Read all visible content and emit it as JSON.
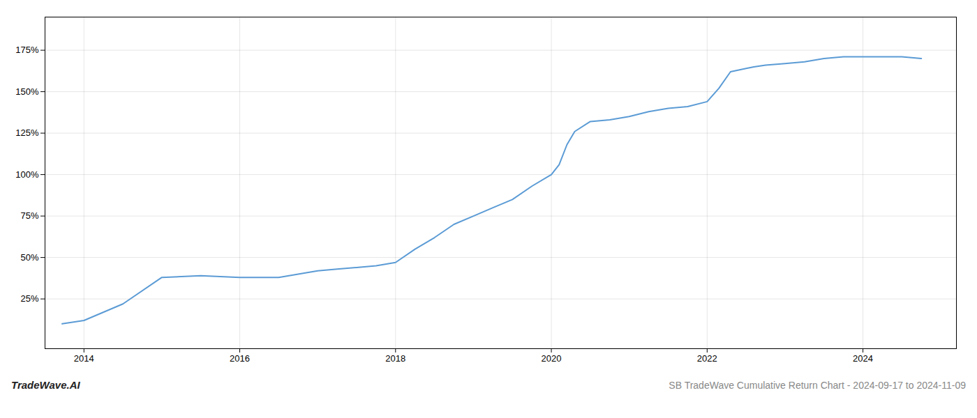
{
  "chart_data": {
    "type": "line",
    "title": "SB TradeWave Cumulative Return Chart - 2024-09-17 to 2024-11-09",
    "annotations": [
      "TradeWave.AI"
    ],
    "x": [
      2013.72,
      2014.0,
      2014.5,
      2015.0,
      2015.5,
      2016.0,
      2016.5,
      2017.0,
      2017.25,
      2017.5,
      2017.75,
      2018.0,
      2018.25,
      2018.5,
      2018.75,
      2019.0,
      2019.25,
      2019.5,
      2019.75,
      2020.0,
      2020.1,
      2020.2,
      2020.3,
      2020.5,
      2020.75,
      2021.0,
      2021.25,
      2021.5,
      2021.75,
      2022.0,
      2022.15,
      2022.3,
      2022.5,
      2022.6,
      2022.75,
      2023.0,
      2023.25,
      2023.5,
      2023.75,
      2024.0,
      2024.25,
      2024.5,
      2024.75
    ],
    "values": [
      10,
      12,
      22,
      38,
      39,
      38,
      38,
      42,
      43,
      44,
      45,
      47,
      55,
      62,
      70,
      75,
      80,
      85,
      93,
      100,
      106,
      118,
      126,
      132,
      133,
      135,
      138,
      140,
      141,
      144,
      152,
      162,
      164,
      165,
      166,
      167,
      168,
      170,
      171,
      171,
      171,
      171,
      170
    ],
    "color": "#5b9bd5",
    "xlim": [
      2013.5,
      2025.2
    ],
    "ylim": [
      -5,
      195
    ],
    "xticks": [
      2014,
      2016,
      2018,
      2020,
      2022,
      2024
    ],
    "yticks": [
      {
        "value": 25,
        "label": "25%"
      },
      {
        "value": 50,
        "label": "50%"
      },
      {
        "value": 75,
        "label": "75%"
      },
      {
        "value": 100,
        "label": "100%"
      },
      {
        "value": 125,
        "label": "125%"
      },
      {
        "value": 150,
        "label": "150%"
      },
      {
        "value": 175,
        "label": "175%"
      }
    ],
    "grid": true
  }
}
